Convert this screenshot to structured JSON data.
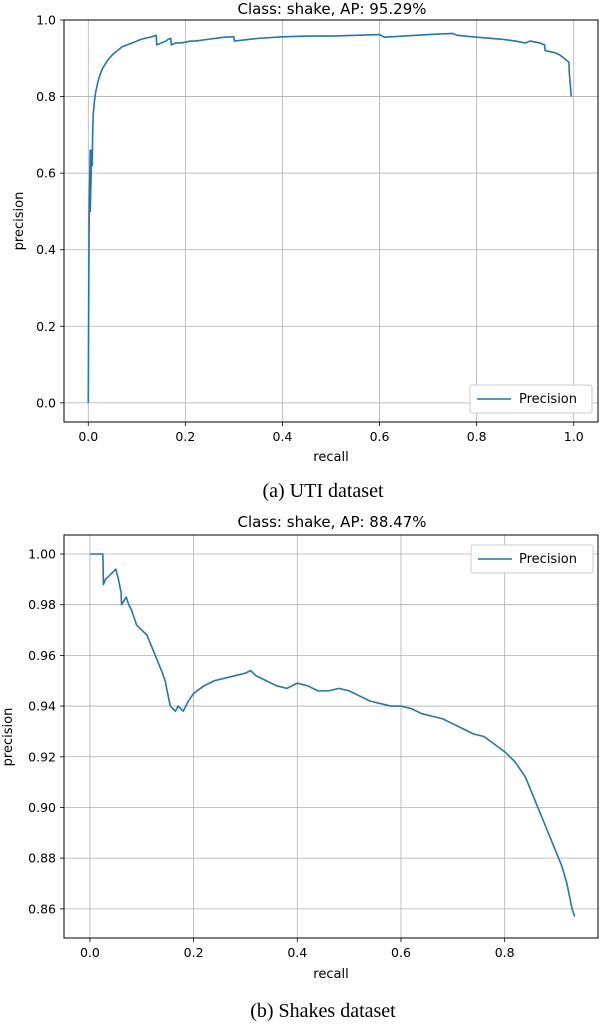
{
  "chart_data": [
    {
      "type": "line",
      "title": "Class: shake, AP: 95.29%",
      "xlabel": "recall",
      "ylabel": "precision",
      "xlim": [
        -0.05,
        1.05
      ],
      "ylim": [
        -0.05,
        1.0
      ],
      "xticks": [
        "0.0",
        "0.2",
        "0.4",
        "0.6",
        "0.8",
        "1.0"
      ],
      "yticks": [
        "0.0",
        "0.2",
        "0.4",
        "0.6",
        "0.8",
        "1.0"
      ],
      "grid": true,
      "legend": "bottom-right",
      "caption": "(a) UTI dataset",
      "series": [
        {
          "name": "Precision",
          "color": "#1f77b4",
          "x": [
            0.0,
            0.001,
            0.002,
            0.004,
            0.004,
            0.006,
            0.007,
            0.008,
            0.009,
            0.01,
            0.012,
            0.015,
            0.02,
            0.025,
            0.03,
            0.035,
            0.04,
            0.05,
            0.06,
            0.07,
            0.08,
            0.09,
            0.1,
            0.11,
            0.12,
            0.13,
            0.14,
            0.141,
            0.16,
            0.165,
            0.17,
            0.171,
            0.18,
            0.19,
            0.2,
            0.21,
            0.22,
            0.25,
            0.28,
            0.3,
            0.301,
            0.35,
            0.4,
            0.45,
            0.5,
            0.55,
            0.6,
            0.61,
            0.65,
            0.7,
            0.75,
            0.76,
            0.8,
            0.85,
            0.88,
            0.9,
            0.91,
            0.93,
            0.94,
            0.941,
            0.96,
            0.97,
            0.98,
            0.985,
            0.99,
            0.991,
            0.995
          ],
          "y": [
            0.0,
            0.3,
            0.5,
            0.66,
            0.5,
            0.6,
            0.66,
            0.62,
            0.7,
            0.75,
            0.78,
            0.81,
            0.84,
            0.86,
            0.875,
            0.885,
            0.895,
            0.91,
            0.92,
            0.93,
            0.935,
            0.94,
            0.945,
            0.95,
            0.953,
            0.956,
            0.96,
            0.935,
            0.945,
            0.95,
            0.952,
            0.935,
            0.94,
            0.94,
            0.942,
            0.945,
            0.945,
            0.95,
            0.955,
            0.956,
            0.945,
            0.952,
            0.956,
            0.958,
            0.958,
            0.96,
            0.962,
            0.955,
            0.958,
            0.962,
            0.965,
            0.96,
            0.955,
            0.95,
            0.945,
            0.94,
            0.945,
            0.94,
            0.935,
            0.92,
            0.915,
            0.91,
            0.9,
            0.895,
            0.89,
            0.86,
            0.8
          ]
        }
      ]
    },
    {
      "type": "line",
      "title": "Class: shake, AP: 88.47%",
      "xlabel": "recall",
      "ylabel": "precision",
      "xlim": [
        -0.05,
        0.98
      ],
      "ylim": [
        0.8485,
        1.0075
      ],
      "xticks": [
        "0.0",
        "0.2",
        "0.4",
        "0.6",
        "0.8"
      ],
      "yticks": [
        "0.86",
        "0.88",
        "0.90",
        "0.92",
        "0.94",
        "0.96",
        "0.98",
        "1.00"
      ],
      "grid": true,
      "legend": "top-right",
      "caption": "(b) Shakes dataset",
      "series": [
        {
          "name": "Precision",
          "color": "#1f77b4",
          "x": [
            0.0,
            0.01,
            0.02,
            0.025,
            0.026,
            0.03,
            0.04,
            0.05,
            0.055,
            0.06,
            0.061,
            0.07,
            0.075,
            0.08,
            0.085,
            0.09,
            0.1,
            0.11,
            0.12,
            0.13,
            0.14,
            0.145,
            0.15,
            0.155,
            0.16,
            0.165,
            0.17,
            0.18,
            0.19,
            0.2,
            0.22,
            0.24,
            0.26,
            0.28,
            0.3,
            0.31,
            0.32,
            0.34,
            0.36,
            0.38,
            0.4,
            0.42,
            0.44,
            0.46,
            0.48,
            0.5,
            0.52,
            0.54,
            0.56,
            0.58,
            0.6,
            0.62,
            0.64,
            0.66,
            0.68,
            0.7,
            0.72,
            0.74,
            0.76,
            0.78,
            0.8,
            0.82,
            0.84,
            0.85,
            0.86,
            0.87,
            0.88,
            0.89,
            0.9,
            0.91,
            0.92,
            0.925,
            0.93,
            0.935
          ],
          "y": [
            1.0,
            1.0,
            1.0,
            1.0,
            0.988,
            0.99,
            0.992,
            0.994,
            0.99,
            0.985,
            0.98,
            0.983,
            0.98,
            0.978,
            0.975,
            0.972,
            0.97,
            0.968,
            0.963,
            0.958,
            0.953,
            0.95,
            0.945,
            0.94,
            0.939,
            0.938,
            0.94,
            0.938,
            0.942,
            0.945,
            0.948,
            0.95,
            0.951,
            0.952,
            0.953,
            0.954,
            0.952,
            0.95,
            0.948,
            0.947,
            0.949,
            0.948,
            0.946,
            0.946,
            0.947,
            0.946,
            0.944,
            0.942,
            0.941,
            0.94,
            0.94,
            0.939,
            0.937,
            0.936,
            0.935,
            0.933,
            0.931,
            0.929,
            0.928,
            0.925,
            0.922,
            0.918,
            0.912,
            0.907,
            0.902,
            0.897,
            0.892,
            0.887,
            0.882,
            0.877,
            0.87,
            0.865,
            0.86,
            0.857
          ]
        }
      ]
    }
  ]
}
